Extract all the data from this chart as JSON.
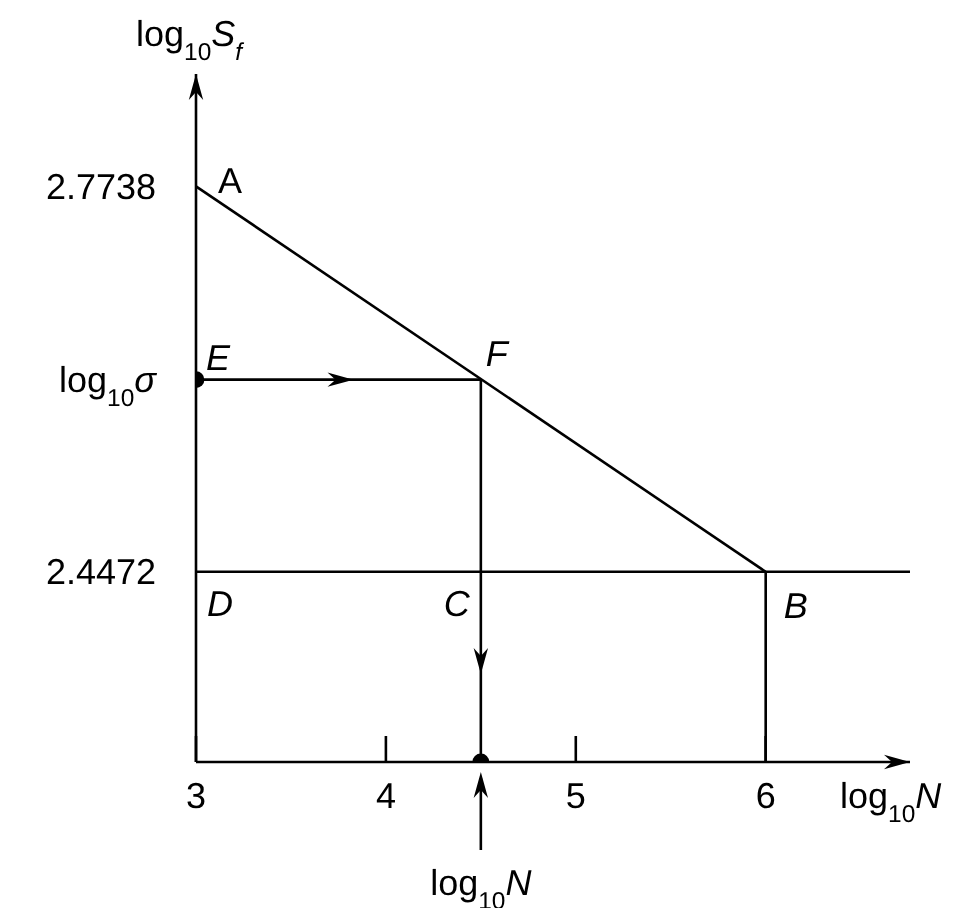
{
  "chart_data": {
    "type": "line",
    "xlabel": "log$_{10}$N",
    "ylabel": "log$_{10}$S$_{f}$",
    "xlim": [
      3,
      6.76
    ],
    "ylim": [
      2.286,
      2.869
    ],
    "xticks": [
      3,
      4,
      5,
      6
    ],
    "yticks": [
      2.4472,
      2.7738
    ],
    "marker": "none",
    "series": [
      {
        "color": "#000000",
        "x": [
          3,
          6
        ],
        "values": [
          2.7738,
          2.4472
        ]
      },
      {
        "color": "#000000",
        "x": [
          3,
          4.5
        ],
        "values": [
          2.61,
          2.61
        ]
      },
      {
        "color": "#000000",
        "x": [
          4.5,
          4.5
        ],
        "values": [
          2.61,
          2.286
        ]
      },
      {
        "color": "#000000",
        "x": [
          6,
          6
        ],
        "values": [
          2.4472,
          2.286
        ]
      },
      {
        "type": "scatter",
        "color": "#000000",
        "marker": "circle",
        "x": [
          3,
          4.5
        ],
        "values": [
          2.61,
          2.286
        ]
      }
    ],
    "ref_lines": [
      {
        "axis": "y",
        "value": 2.4472,
        "color": "#000000"
      }
    ],
    "annotations": [
      {
        "text": "A",
        "x": 3,
        "y": 2.7738
      },
      {
        "text": "E",
        "x": 3,
        "y": 2.61
      },
      {
        "text": "F",
        "x": 4.5,
        "y": 2.61
      },
      {
        "text": "D",
        "x": 3,
        "y": 2.4472
      },
      {
        "text": "C",
        "x": 4.5,
        "y": 2.4472
      },
      {
        "text": "B",
        "x": 6,
        "y": 2.4472
      },
      {
        "text": "log$_{10}$N",
        "x": 4.5,
        "y": 2.286
      },
      {
        "text": "log$_{10}$σ",
        "x": 3,
        "y": 2.61
      }
    ]
  }
}
